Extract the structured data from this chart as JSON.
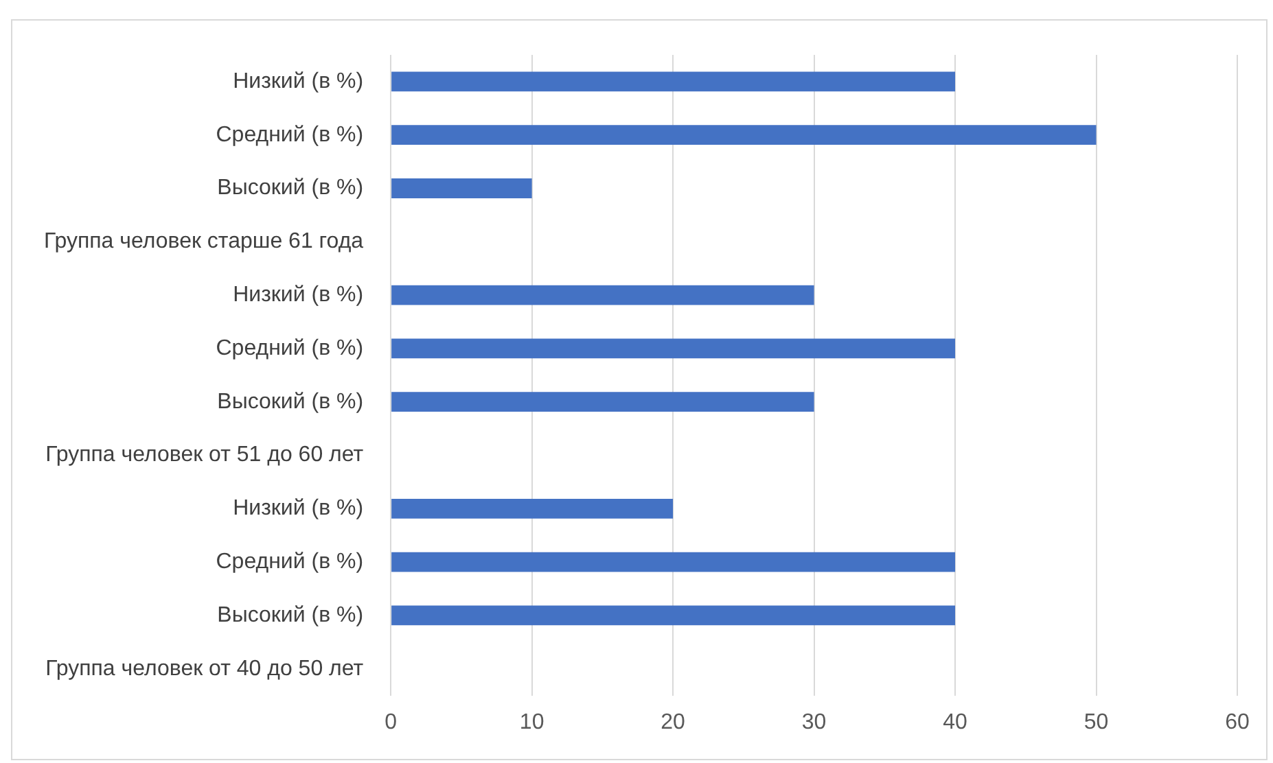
{
  "chart_data": {
    "type": "bar",
    "orientation": "horizontal",
    "categories": [
      "Низкий (в %)",
      "Средний (в %)",
      "Высокий (в %)",
      "Группа человек старше 61 года",
      "Низкий (в %)",
      "Средний (в %)",
      "Высокий (в %)",
      "Группа человек от 51 до 60 лет",
      "Низкий (в %)",
      "Средний (в %)",
      "Высокий (в %)",
      "Группа человек от 40 до 50 лет"
    ],
    "values": [
      40,
      50,
      10,
      null,
      30,
      40,
      30,
      null,
      20,
      40,
      40,
      null
    ],
    "color": "#4472c4",
    "xlim": [
      0,
      60
    ],
    "xticks": [
      0,
      10,
      20,
      30,
      40,
      50,
      60
    ],
    "grid": "x",
    "legend": false
  }
}
